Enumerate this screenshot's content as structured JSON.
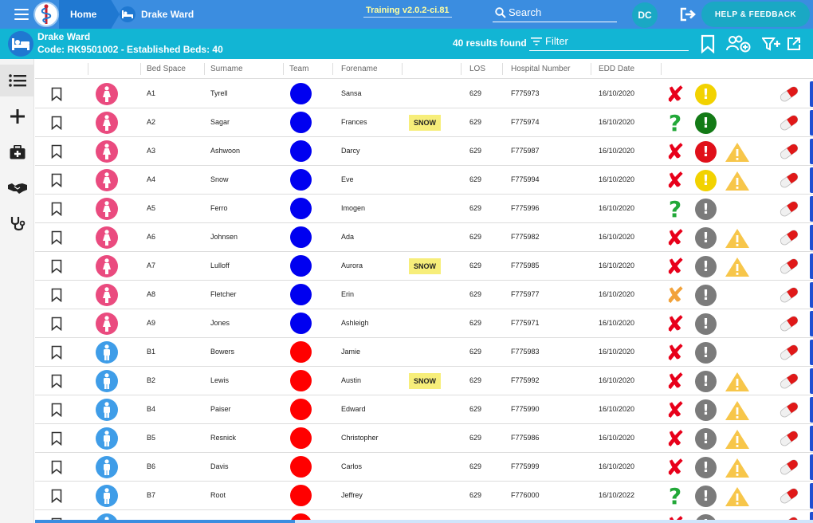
{
  "topbar": {
    "home_label": "Home",
    "ward_label": "Drake Ward",
    "version": "Training v2.0.2-ci.81",
    "search_label": "Search",
    "user_initials": "DC",
    "help_label": "HELP & FEEDBACK"
  },
  "ward": {
    "name": "Drake Ward",
    "code_line": "Code: RK9501002 - Established Beds: 40",
    "results": "40 results found",
    "filter_label": "Filter"
  },
  "colors": {
    "topbar": "#3b8de0",
    "wardbar": "#12b5d4",
    "female": "#ea4b7f",
    "male": "#3f9de8",
    "team_blue": "#0000f0",
    "team_red": "#ff0000",
    "status_x_red": "#e8001a",
    "status_x_orange": "#f2a23a",
    "status_q": "#22a838",
    "alert_yellow": "#f2d200",
    "alert_green": "#137a16",
    "alert_red": "#e0101a",
    "alert_grey": "#7b7b7b",
    "warn": "#f7c64a"
  },
  "columns": {
    "bed_space": "Bed Space",
    "surname": "Surname",
    "team": "Team",
    "forename": "Forename",
    "los": "LOS",
    "hospital_number": "Hospital Number",
    "edd_date": "EDD Date"
  },
  "rows": [
    {
      "bed": "A1",
      "surname": "Tyrell",
      "forename": "Sansa",
      "flag": "",
      "los": "629",
      "hosp": "F775973",
      "edd": "16/10/2020",
      "sex": "female",
      "team": "blue",
      "status": "x-red",
      "alert": "yellow",
      "warn": false
    },
    {
      "bed": "A2",
      "surname": "Sagar",
      "forename": "Frances",
      "flag": "SNOW",
      "los": "629",
      "hosp": "F775974",
      "edd": "16/10/2020",
      "sex": "female",
      "team": "blue",
      "status": "q",
      "alert": "green",
      "warn": false
    },
    {
      "bed": "A3",
      "surname": "Ashwoon",
      "forename": "Darcy",
      "flag": "",
      "los": "629",
      "hosp": "F775987",
      "edd": "16/10/2020",
      "sex": "female",
      "team": "blue",
      "status": "x-red",
      "alert": "red",
      "warn": true
    },
    {
      "bed": "A4",
      "surname": "Snow",
      "forename": "Eve",
      "flag": "",
      "los": "629",
      "hosp": "F775994",
      "edd": "16/10/2020",
      "sex": "female",
      "team": "blue",
      "status": "x-red",
      "alert": "yellow",
      "warn": true
    },
    {
      "bed": "A5",
      "surname": "Ferro",
      "forename": "Imogen",
      "flag": "",
      "los": "629",
      "hosp": "F775996",
      "edd": "16/10/2020",
      "sex": "female",
      "team": "blue",
      "status": "q",
      "alert": "grey",
      "warn": false
    },
    {
      "bed": "A6",
      "surname": "Johnsen",
      "forename": "Ada",
      "flag": "",
      "los": "629",
      "hosp": "F775982",
      "edd": "16/10/2020",
      "sex": "female",
      "team": "blue",
      "status": "x-red",
      "alert": "grey",
      "warn": true
    },
    {
      "bed": "A7",
      "surname": "Lulloff",
      "forename": "Aurora",
      "flag": "SNOW",
      "los": "629",
      "hosp": "F775985",
      "edd": "16/10/2020",
      "sex": "female",
      "team": "blue",
      "status": "x-red",
      "alert": "grey",
      "warn": true
    },
    {
      "bed": "A8",
      "surname": "Fletcher",
      "forename": "Erin",
      "flag": "",
      "los": "629",
      "hosp": "F775977",
      "edd": "16/10/2020",
      "sex": "female",
      "team": "blue",
      "status": "x-orange",
      "alert": "grey",
      "warn": false
    },
    {
      "bed": "A9",
      "surname": "Jones",
      "forename": "Ashleigh",
      "flag": "",
      "los": "629",
      "hosp": "F775971",
      "edd": "16/10/2020",
      "sex": "female",
      "team": "blue",
      "status": "x-red",
      "alert": "grey",
      "warn": false
    },
    {
      "bed": "B1",
      "surname": "Bowers",
      "forename": "Jamie",
      "flag": "",
      "los": "629",
      "hosp": "F775983",
      "edd": "16/10/2020",
      "sex": "male",
      "team": "red",
      "status": "x-red",
      "alert": "grey",
      "warn": false
    },
    {
      "bed": "B2",
      "surname": "Lewis",
      "forename": "Austin",
      "flag": "SNOW",
      "los": "629",
      "hosp": "F775992",
      "edd": "16/10/2020",
      "sex": "male",
      "team": "red",
      "status": "x-red",
      "alert": "grey",
      "warn": true
    },
    {
      "bed": "B4",
      "surname": "Paiser",
      "forename": "Edward",
      "flag": "",
      "los": "629",
      "hosp": "F775990",
      "edd": "16/10/2020",
      "sex": "male",
      "team": "red",
      "status": "x-red",
      "alert": "grey",
      "warn": true
    },
    {
      "bed": "B5",
      "surname": "Resnick",
      "forename": "Christopher",
      "flag": "",
      "los": "629",
      "hosp": "F775986",
      "edd": "16/10/2020",
      "sex": "male",
      "team": "red",
      "status": "x-red",
      "alert": "grey",
      "warn": true
    },
    {
      "bed": "B6",
      "surname": "Davis",
      "forename": "Carlos",
      "flag": "",
      "los": "629",
      "hosp": "F775999",
      "edd": "16/10/2020",
      "sex": "male",
      "team": "red",
      "status": "x-red",
      "alert": "grey",
      "warn": true
    },
    {
      "bed": "B7",
      "surname": "Root",
      "forename": "Jeffrey",
      "flag": "",
      "los": "629",
      "hosp": "F776000",
      "edd": "16/10/2022",
      "sex": "male",
      "team": "red",
      "status": "q",
      "alert": "grey",
      "warn": true
    },
    {
      "bed": "",
      "surname": "",
      "forename": "",
      "flag": "",
      "los": "",
      "hosp": "",
      "edd": "",
      "sex": "male",
      "team": "red",
      "status": "x-red",
      "alert": "grey",
      "warn": false
    }
  ]
}
